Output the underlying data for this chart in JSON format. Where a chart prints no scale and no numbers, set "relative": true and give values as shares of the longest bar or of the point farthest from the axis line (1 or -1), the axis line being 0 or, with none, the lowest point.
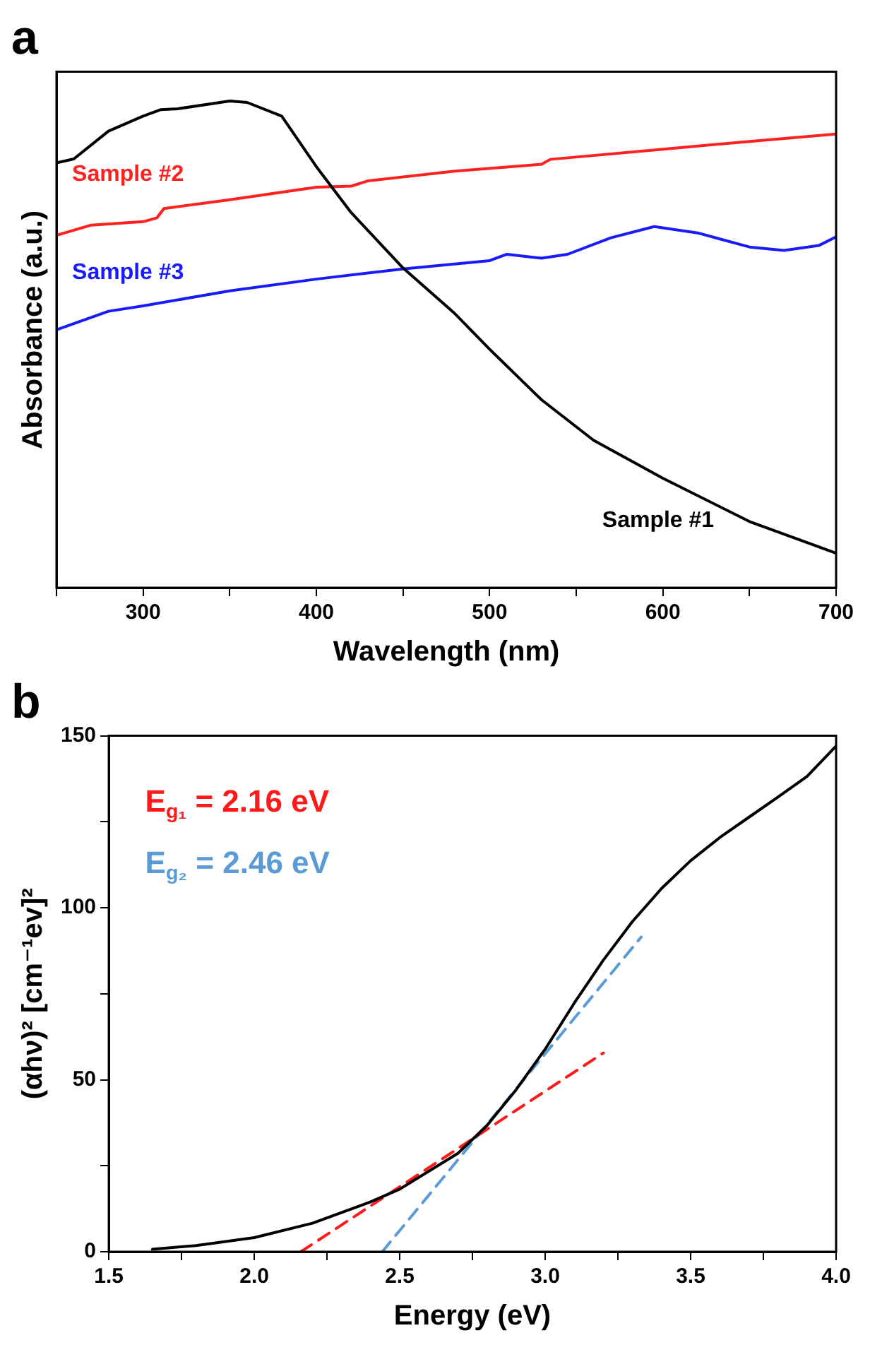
{
  "chart_data": [
    {
      "type": "line",
      "title": "a",
      "xlabel": "Wavelength (nm)",
      "ylabel": "Absorbance (a.u.)",
      "relative": true,
      "xlim": [
        250,
        700
      ],
      "xticks": [
        {
          "value": 250,
          "label": null
        },
        300,
        {
          "value": 350,
          "label": null
        },
        400,
        {
          "value": 450,
          "label": null
        },
        500,
        {
          "value": 550,
          "label": null
        },
        600,
        {
          "value": 650,
          "label": null
        },
        700
      ],
      "series": [
        {
          "name": "Sample #1",
          "color": "#000000",
          "x": [
            250,
            260,
            280,
            300,
            310,
            320,
            350,
            360,
            380,
            400,
            420,
            450,
            480,
            500,
            530,
            560,
            600,
            650,
            700
          ],
          "values": [
            0.873,
            0.881,
            0.938,
            0.969,
            0.982,
            0.984,
            1.0,
            0.997,
            0.969,
            0.865,
            0.771,
            0.657,
            0.563,
            0.49,
            0.386,
            0.303,
            0.225,
            0.136,
            0.071
          ]
        },
        {
          "name": "Sample #2",
          "color": "#ff2020",
          "x": [
            250,
            270,
            300,
            308,
            312,
            350,
            400,
            420,
            430,
            480,
            520,
            530,
            535,
            600,
            650,
            700
          ],
          "values": [
            0.724,
            0.745,
            0.752,
            0.76,
            0.779,
            0.797,
            0.823,
            0.825,
            0.836,
            0.856,
            0.867,
            0.87,
            0.88,
            0.901,
            0.917,
            0.932
          ]
        },
        {
          "name": "Sample #3",
          "color": "#1a1aff",
          "x": [
            250,
            280,
            300,
            350,
            400,
            450,
            500,
            510,
            530,
            545,
            570,
            595,
            620,
            650,
            670,
            690,
            700
          ],
          "values": [
            0.53,
            0.568,
            0.579,
            0.61,
            0.634,
            0.655,
            0.672,
            0.685,
            0.677,
            0.685,
            0.719,
            0.742,
            0.729,
            0.7,
            0.693,
            0.703,
            0.721
          ]
        }
      ]
    },
    {
      "type": "line",
      "title": "b",
      "xlabel": "Energy (eV)",
      "ylabel": "(αhν)² [cm⁻¹ev]²",
      "xlim": [
        1.5,
        4.0
      ],
      "xticks": [
        1.5,
        {
          "value": 1.75,
          "label": null
        },
        {
          "value": 2.0,
          "label": "2.0"
        },
        {
          "value": 2.25,
          "label": null
        },
        2.5,
        {
          "value": 2.75,
          "label": null
        },
        {
          "value": 3.0,
          "label": "3.0"
        },
        {
          "value": 3.25,
          "label": null
        },
        3.5,
        {
          "value": 3.75,
          "label": null
        },
        {
          "value": 4.0,
          "label": "4.0"
        }
      ],
      "ylim": [
        0,
        150
      ],
      "yticks": [
        0,
        {
          "value": 25,
          "label": null
        },
        50,
        {
          "value": 75,
          "label": null
        },
        100,
        {
          "value": 125,
          "label": null
        },
        150
      ],
      "series": [
        {
          "color": "#000000",
          "x": [
            1.65,
            1.8,
            2.0,
            2.2,
            2.4,
            2.5,
            2.6,
            2.7,
            2.8,
            2.9,
            3.0,
            3.1,
            3.2,
            3.3,
            3.4,
            3.5,
            3.6,
            3.7,
            3.8,
            3.9,
            4.0
          ],
          "values": [
            0.7,
            1.8,
            4.1,
            8.3,
            14.5,
            18.2,
            23.4,
            28.6,
            36.7,
            47.1,
            58.9,
            72.3,
            84.8,
            96,
            105.6,
            113.7,
            120.4,
            126.3,
            132.2,
            138.2,
            147
          ]
        },
        {
          "name": "E$_{g₁}$ = 2.16 eV",
          "color": "#ff1a1a",
          "line_style": "dashed",
          "x": [
            2.16,
            3.2
          ],
          "values": [
            0,
            57.8
          ]
        },
        {
          "name": "E$_{g₂}$ = 2.46 eV",
          "color": "#5b9bd5",
          "line_style": "dashed",
          "x": [
            2.44,
            3.33
          ],
          "values": [
            0,
            91.5
          ]
        }
      ]
    }
  ]
}
